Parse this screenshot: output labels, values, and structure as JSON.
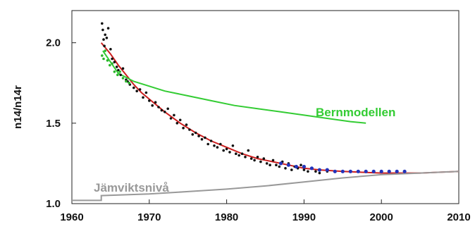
{
  "chart_data": {
    "type": "scatter",
    "title": "",
    "xlabel": "",
    "ylabel": "n14/n14r",
    "xlim": [
      1960,
      2010
    ],
    "ylim": [
      1.0,
      2.2
    ],
    "x_ticks": [
      "1960",
      "1970",
      "1980",
      "1990",
      "2000",
      "2010"
    ],
    "y_ticks": [
      "1.0",
      "1.5",
      "2.0"
    ],
    "grid": false,
    "annotations": [
      {
        "text": "Bernmodellen",
        "color": "#33cc33"
      },
      {
        "text": "Jämviktsnivå",
        "color": "#999999"
      }
    ],
    "colors": {
      "fit": "#cc1f1f",
      "bern": "#33cc33",
      "equilibrium": "#999999",
      "black_points": "#111111",
      "green_points": "#2bb52b",
      "blue_points": "#2233bb"
    },
    "series": [
      {
        "type": "line",
        "color": "#cc1f1f",
        "x": [
          1963.8,
          1965,
          1966,
          1967,
          1968,
          1969,
          1970,
          1972,
          1974,
          1976,
          1978,
          1980,
          1982,
          1984,
          1986,
          1988,
          1990,
          1992,
          1995,
          2000,
          2005,
          2010
        ],
        "y": [
          2.0,
          1.93,
          1.86,
          1.8,
          1.74,
          1.69,
          1.65,
          1.57,
          1.5,
          1.44,
          1.39,
          1.35,
          1.31,
          1.28,
          1.26,
          1.24,
          1.22,
          1.21,
          1.2,
          1.19,
          1.19,
          1.2
        ]
      },
      {
        "type": "line",
        "color": "#33cc33",
        "x": [
          1964,
          1966,
          1968,
          1970,
          1972,
          1975,
          1978,
          1981,
          1984,
          1987,
          1990,
          1993,
          1996,
          1998
        ],
        "y": [
          1.95,
          1.81,
          1.76,
          1.73,
          1.7,
          1.67,
          1.64,
          1.61,
          1.59,
          1.57,
          1.55,
          1.53,
          1.51,
          1.5
        ]
      },
      {
        "type": "line",
        "color": "#999999",
        "x": [
          1960,
          1963.8,
          1963.8,
          1970,
          1975,
          1980,
          1985,
          1990,
          1995,
          2000,
          2005,
          2010
        ],
        "y": [
          1.02,
          1.02,
          1.05,
          1.06,
          1.075,
          1.09,
          1.11,
          1.135,
          1.16,
          1.18,
          1.19,
          1.2
        ]
      },
      {
        "type": "scatter",
        "color": "#111111",
        "x": [
          1963.9,
          1964.0,
          1964.1,
          1964.2,
          1964.3,
          1964.5,
          1964.7,
          1965.0,
          1965.2,
          1965.5,
          1965.8,
          1966.0,
          1966.3,
          1966.6,
          1967.0,
          1967.2,
          1967.5,
          1968.0,
          1968.4,
          1968.8,
          1969.2,
          1969.6,
          1970.0,
          1970.4,
          1970.8,
          1971.2,
          1971.6,
          1972.0,
          1972.4,
          1972.8,
          1973.2,
          1973.6,
          1974.0,
          1974.4,
          1974.8,
          1975.2,
          1975.6,
          1976.0,
          1976.4,
          1976.8,
          1977.2,
          1977.6,
          1978.0,
          1978.4,
          1978.8,
          1979.2,
          1979.6,
          1980.0,
          1980.4,
          1980.8,
          1981.2,
          1981.6,
          1982.0,
          1982.4,
          1982.8,
          1983.2,
          1983.6,
          1984.0,
          1984.4,
          1984.8,
          1985.2,
          1985.6,
          1986.0,
          1986.4,
          1986.8,
          1987.2,
          1987.6,
          1988.0,
          1988.4,
          1988.8,
          1989.2,
          1989.6,
          1990.0,
          1990.5,
          1991.0,
          1991.5,
          1992.0,
          1993.0
        ],
        "y": [
          2.12,
          2.08,
          2.02,
          1.98,
          2.05,
          2.03,
          2.09,
          1.96,
          1.9,
          1.88,
          1.85,
          1.83,
          1.8,
          1.84,
          1.77,
          1.76,
          1.74,
          1.72,
          1.7,
          1.71,
          1.66,
          1.69,
          1.64,
          1.61,
          1.63,
          1.6,
          1.58,
          1.57,
          1.59,
          1.53,
          1.55,
          1.5,
          1.52,
          1.47,
          1.49,
          1.46,
          1.43,
          1.44,
          1.42,
          1.4,
          1.41,
          1.37,
          1.39,
          1.36,
          1.35,
          1.37,
          1.33,
          1.34,
          1.32,
          1.36,
          1.31,
          1.3,
          1.31,
          1.29,
          1.33,
          1.28,
          1.27,
          1.29,
          1.26,
          1.28,
          1.25,
          1.24,
          1.27,
          1.24,
          1.23,
          1.26,
          1.22,
          1.25,
          1.21,
          1.23,
          1.22,
          1.24,
          1.21,
          1.2,
          1.22,
          1.2,
          1.19,
          1.2
        ]
      },
      {
        "type": "scatter",
        "color": "#2bb52b",
        "x": [
          1963.9,
          1964.1,
          1964.3,
          1964.6,
          1964.9,
          1965.2,
          1965.5,
          1965.9,
          1966.2,
          1966.6,
          1967.0,
          1967.4
        ],
        "y": [
          1.92,
          1.9,
          1.95,
          1.89,
          1.86,
          1.87,
          1.82,
          1.8,
          1.82,
          1.78,
          1.76,
          1.75
        ]
      },
      {
        "type": "scatter",
        "color": "#2233bb",
        "x": [
          1987.0,
          1988.0,
          1989.0,
          1990.0,
          1991.0,
          1992.0,
          1993.0,
          1994.0,
          1995.0,
          1996.0,
          1997.0,
          1998.0,
          1999.0,
          2000.0,
          2001.0,
          2002.0,
          2003.0
        ],
        "y": [
          1.25,
          1.24,
          1.23,
          1.23,
          1.22,
          1.21,
          1.21,
          1.2,
          1.2,
          1.2,
          1.2,
          1.2,
          1.2,
          1.2,
          1.2,
          1.2,
          1.2
        ]
      }
    ]
  }
}
